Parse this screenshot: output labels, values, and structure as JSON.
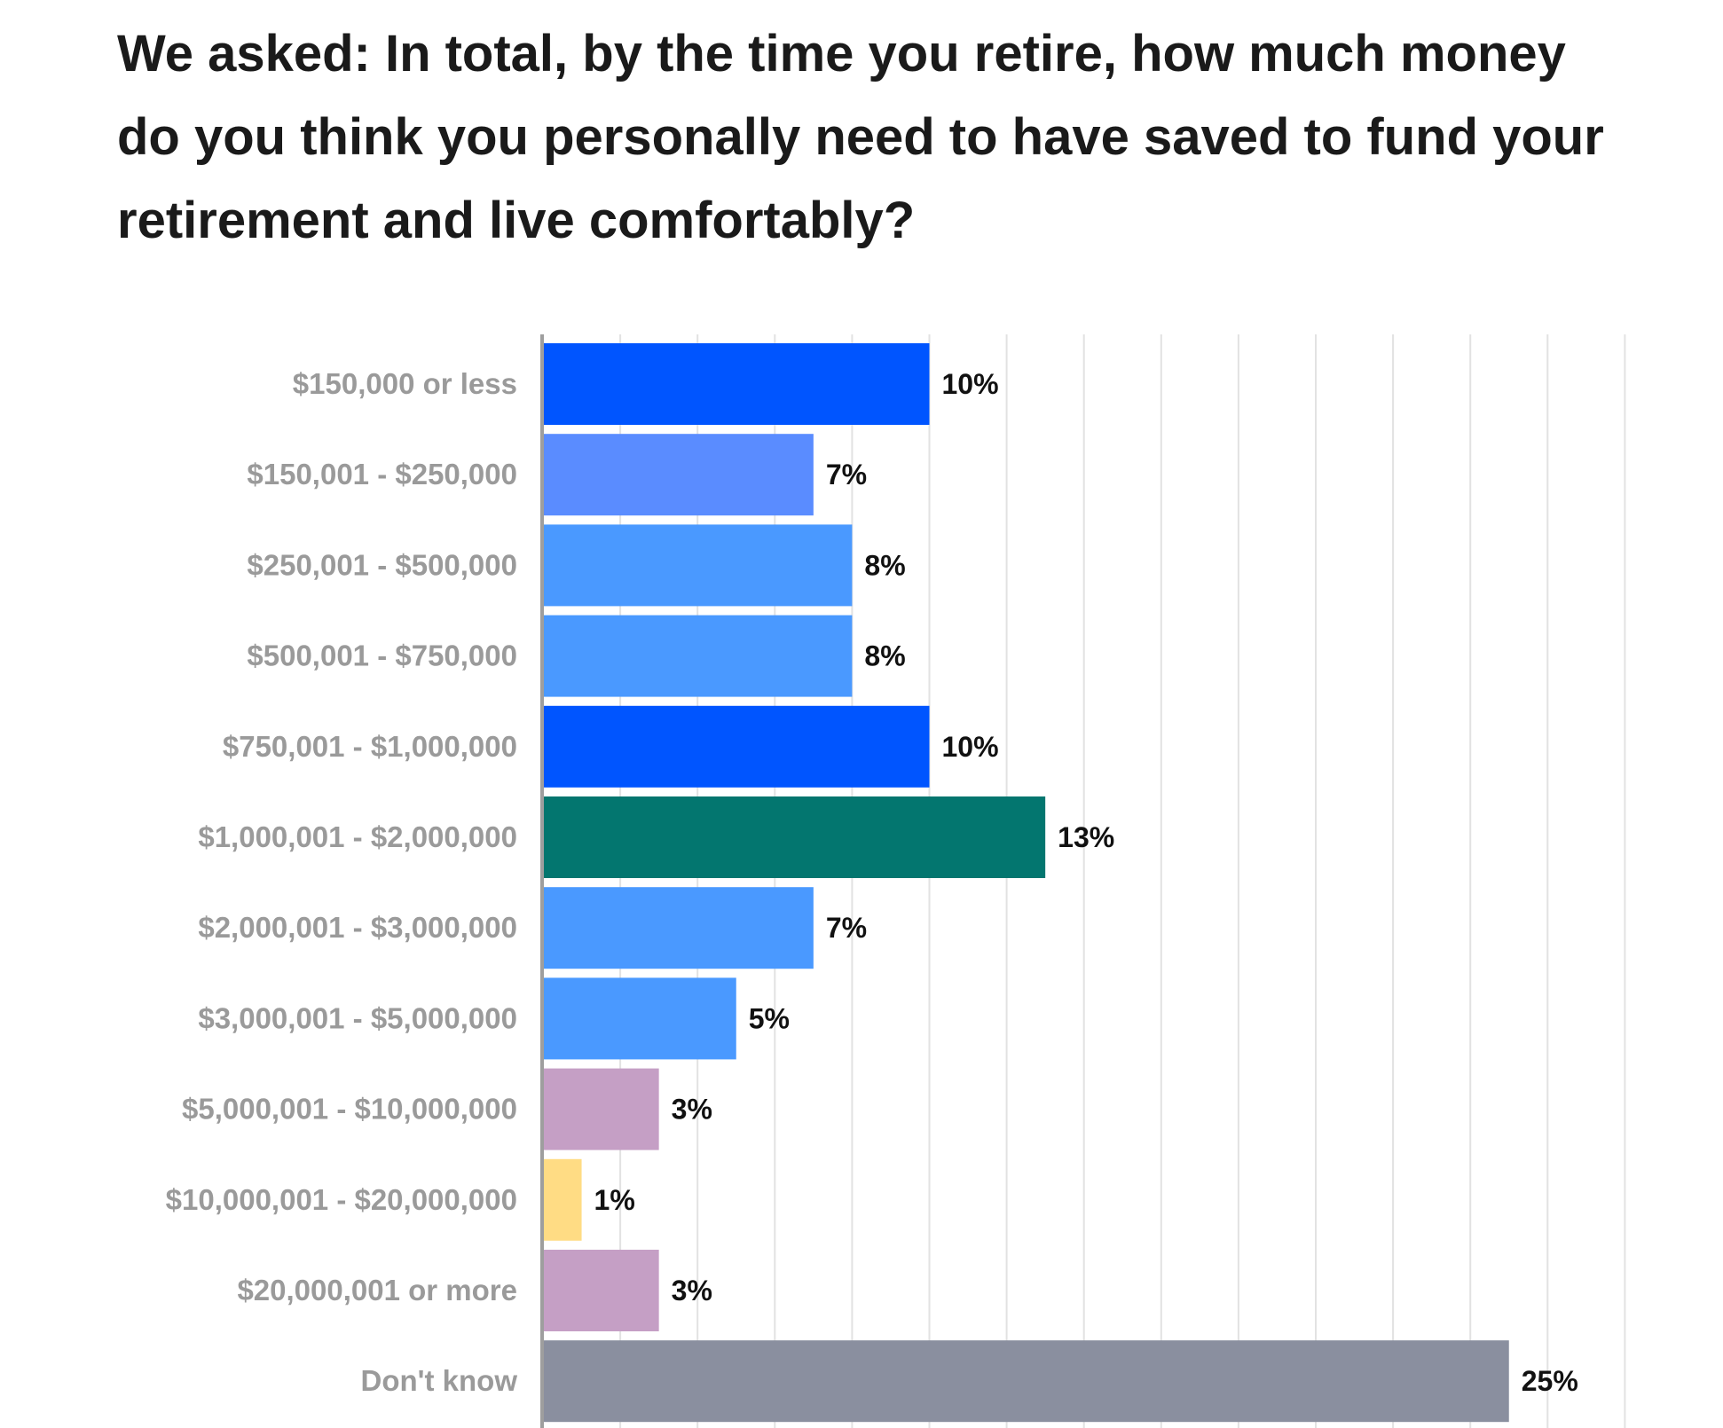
{
  "chart_data": {
    "type": "bar",
    "orientation": "horizontal",
    "title": "We asked: In total, by the time you retire, how much money do you think you personally need to have saved to fund your retirement and live comfortably?",
    "categories": [
      "$150,000 or less",
      "$150,001 - $250,000",
      "$250,001 - $500,000",
      "$500,001 - $750,000",
      "$750,001 - $1,000,000",
      "$1,000,001 - $2,000,000",
      "$2,000,001 - $3,000,000",
      "$3,000,001 - $5,000,000",
      "$5,000,001 - $10,000,000",
      "$10,000,001 - $20,000,000",
      "$20,000,001 or more",
      "Don't know"
    ],
    "values": [
      10,
      7,
      8,
      8,
      10,
      13,
      7,
      5,
      3,
      1,
      3,
      25
    ],
    "value_labels": [
      "10%",
      "7%",
      "8%",
      "8%",
      "10%",
      "13%",
      "7%",
      "5%",
      "3%",
      "1%",
      "3%",
      "25%"
    ],
    "bar_colors": [
      "#0055ff",
      "#5a8cff",
      "#4a99ff",
      "#4a99ff",
      "#0055ff",
      "#03766f",
      "#4a99ff",
      "#4a99ff",
      "#c59fc5",
      "#ffdc84",
      "#c59fc5",
      "#8a8f9f"
    ],
    "xlabel": "",
    "ylabel": "",
    "xlim": [
      0,
      28
    ],
    "grid_step": 2,
    "grid": true,
    "legend": "none",
    "colors": {
      "grid": "#e2e2e2",
      "axis": "#9e9e9e",
      "category_text": "#9a9a9a",
      "value_text": "#111111",
      "title_text": "#1a1a1a"
    }
  }
}
